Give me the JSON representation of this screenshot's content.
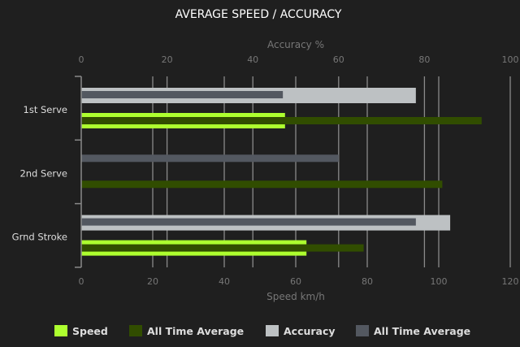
{
  "chart_data": {
    "type": "bar",
    "orientation": "horizontal",
    "title": "AVERAGE SPEED / ACCURACY",
    "categories": [
      "1st Serve",
      "2nd Serve",
      "Grnd Stroke"
    ],
    "x_bottom": {
      "label": "Speed km/h",
      "range": [
        0,
        120
      ],
      "ticks": [
        0,
        20,
        40,
        60,
        80,
        100,
        120
      ]
    },
    "x_top": {
      "label": "Accuracy %",
      "range": [
        0,
        100
      ],
      "ticks": [
        0,
        20,
        40,
        60,
        80,
        100
      ]
    },
    "grid": true,
    "legend_position": "bottom",
    "series": [
      {
        "name": "Speed",
        "axis": "bottom",
        "color": "#adff2f",
        "values": [
          57,
          null,
          63
        ]
      },
      {
        "name": "All Time Average",
        "axis": "bottom",
        "color": "#314d00",
        "values": [
          112,
          101,
          79
        ]
      },
      {
        "name": "Accuracy",
        "axis": "top",
        "color": "#bdc1c3",
        "values": [
          78,
          null,
          86
        ]
      },
      {
        "name": "All Time Average",
        "axis": "top",
        "color": "#535860",
        "values": [
          47,
          60,
          78
        ]
      }
    ]
  }
}
